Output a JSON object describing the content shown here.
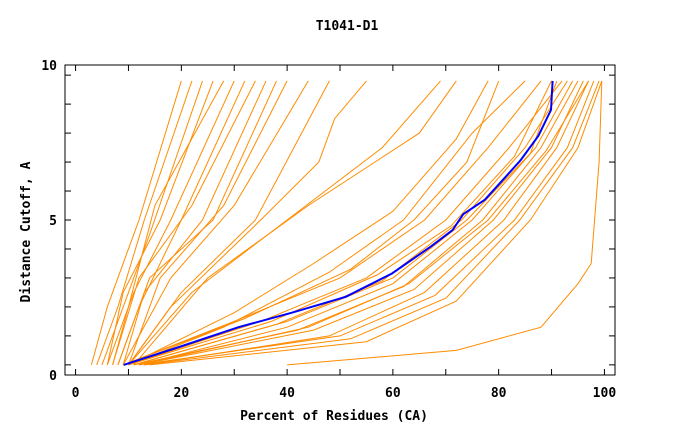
{
  "chart_data": {
    "type": "line",
    "title": "T1041-D1",
    "xlabel": "Percent of Residues (CA)",
    "ylabel": "Distance Cutoff, A",
    "xlim": [
      -2,
      102
    ],
    "ylim": [
      -0.35,
      10.35
    ],
    "xticks": [
      0,
      20,
      40,
      60,
      80,
      100
    ],
    "xminor_step": 10,
    "yticks": [
      0,
      5,
      10
    ],
    "yminor_step": 1,
    "grid": false,
    "colors": {
      "models": "#ff8c00",
      "highlight": "#0000ff"
    },
    "highlight_series": [
      [
        9.1,
        0
      ],
      [
        19.3,
        0.6
      ],
      [
        30.8,
        1.3
      ],
      [
        40.9,
        1.8
      ],
      [
        51.1,
        2.35
      ],
      [
        59.8,
        3.15
      ],
      [
        67.3,
        4.1
      ],
      [
        71.3,
        4.65
      ],
      [
        73.3,
        5.2
      ],
      [
        77.4,
        5.7
      ],
      [
        84.1,
        7.05
      ],
      [
        87.5,
        7.9
      ],
      [
        89.9,
        8.8
      ],
      [
        90.2,
        9.8
      ]
    ],
    "series": [
      [
        [
          3,
          0
        ],
        [
          6,
          2
        ],
        [
          12,
          5
        ],
        [
          20,
          9.8
        ]
      ],
      [
        [
          4,
          0
        ],
        [
          8,
          2
        ],
        [
          13,
          5
        ],
        [
          22,
          9.8
        ]
      ],
      [
        [
          5,
          0
        ],
        [
          9,
          2
        ],
        [
          14,
          4.5
        ],
        [
          24,
          9.8
        ]
      ],
      [
        [
          6,
          0
        ],
        [
          9,
          2.5
        ],
        [
          16,
          5
        ],
        [
          26,
          9.8
        ]
      ],
      [
        [
          7,
          0
        ],
        [
          10,
          2
        ],
        [
          15,
          5.5
        ],
        [
          28,
          9.8
        ]
      ],
      [
        [
          6,
          0
        ],
        [
          11,
          2.5
        ],
        [
          18,
          5
        ],
        [
          30,
          9.8
        ]
      ],
      [
        [
          8,
          0
        ],
        [
          12,
          2
        ],
        [
          20,
          5
        ],
        [
          32,
          9.8
        ]
      ],
      [
        [
          7,
          0
        ],
        [
          12,
          3
        ],
        [
          22,
          5.5
        ],
        [
          34,
          9.8
        ]
      ],
      [
        [
          9,
          0
        ],
        [
          13,
          2.5
        ],
        [
          24,
          5
        ],
        [
          36,
          9.8
        ]
      ],
      [
        [
          8,
          0
        ],
        [
          14,
          3
        ],
        [
          26,
          5
        ],
        [
          38,
          9.8
        ]
      ],
      [
        [
          10,
          0
        ],
        [
          16,
          3
        ],
        [
          28,
          5.5
        ],
        [
          40,
          9.8
        ]
      ],
      [
        [
          9,
          0
        ],
        [
          18,
          3
        ],
        [
          30,
          5.5
        ],
        [
          44,
          9.8
        ]
      ],
      [
        [
          10,
          0
        ],
        [
          20,
          2.5
        ],
        [
          34,
          5
        ],
        [
          48,
          9.8
        ]
      ],
      [
        [
          10,
          0
        ],
        [
          18,
          2
        ],
        [
          35,
          5
        ],
        [
          46,
          7
        ],
        [
          49,
          8.5
        ],
        [
          55,
          9.8
        ]
      ],
      [
        [
          10,
          0
        ],
        [
          22,
          2.5
        ],
        [
          40,
          5
        ],
        [
          58,
          7.5
        ],
        [
          69,
          9.8
        ]
      ],
      [
        [
          11,
          0
        ],
        [
          25,
          3
        ],
        [
          44,
          5.5
        ],
        [
          65,
          8
        ],
        [
          72,
          9.8
        ]
      ],
      [
        [
          9,
          0
        ],
        [
          30,
          1.5
        ],
        [
          50,
          3
        ],
        [
          66,
          5
        ],
        [
          78,
          7.5
        ],
        [
          88,
          9.8
        ]
      ],
      [
        [
          10,
          0
        ],
        [
          28,
          1.3
        ],
        [
          48,
          3.2
        ],
        [
          62,
          5
        ],
        [
          75,
          8
        ],
        [
          85,
          9.8
        ]
      ],
      [
        [
          10,
          0
        ],
        [
          35,
          1.5
        ],
        [
          55,
          3
        ],
        [
          70,
          5
        ],
        [
          82,
          7.5
        ],
        [
          92,
          9.8
        ]
      ],
      [
        [
          11,
          0
        ],
        [
          38,
          1.4
        ],
        [
          58,
          2.9
        ],
        [
          73,
          5
        ],
        [
          85,
          7.5
        ],
        [
          93,
          9.8
        ]
      ],
      [
        [
          12,
          0
        ],
        [
          40,
          1.3
        ],
        [
          60,
          2.8
        ],
        [
          75,
          5
        ],
        [
          87,
          7.5
        ],
        [
          94,
          9.8
        ]
      ],
      [
        [
          11,
          0
        ],
        [
          42,
          1.2
        ],
        [
          62,
          2.7
        ],
        [
          77,
          5
        ],
        [
          88,
          7.5
        ],
        [
          95,
          9.8
        ]
      ],
      [
        [
          12,
          0
        ],
        [
          45,
          1.2
        ],
        [
          64,
          2.6
        ],
        [
          79,
          5
        ],
        [
          90,
          7.5
        ],
        [
          96,
          9.8
        ]
      ],
      [
        [
          13,
          0
        ],
        [
          48,
          1
        ],
        [
          66,
          2.5
        ],
        [
          81,
          5
        ],
        [
          91,
          7.5
        ],
        [
          97,
          9.8
        ]
      ],
      [
        [
          12,
          0
        ],
        [
          50,
          1
        ],
        [
          68,
          2.4
        ],
        [
          83,
          5
        ],
        [
          93,
          7.5
        ],
        [
          98,
          9.8
        ]
      ],
      [
        [
          13,
          0
        ],
        [
          52,
          0.9
        ],
        [
          70,
          2.3
        ],
        [
          84,
          5
        ],
        [
          94,
          7.5
        ],
        [
          99,
          9.8
        ]
      ],
      [
        [
          14,
          0
        ],
        [
          55,
          0.8
        ],
        [
          72,
          2.2
        ],
        [
          86,
          5
        ],
        [
          95,
          7.5
        ],
        [
          99.5,
          9.8
        ]
      ],
      [
        [
          9,
          0
        ],
        [
          32,
          1.6
        ],
        [
          52,
          3.3
        ],
        [
          64,
          5
        ],
        [
          74,
          7
        ],
        [
          80,
          9.8
        ]
      ],
      [
        [
          10,
          0
        ],
        [
          30,
          1.8
        ],
        [
          45,
          3.5
        ],
        [
          60,
          5.3
        ],
        [
          72,
          7.8
        ],
        [
          78,
          9.8
        ]
      ],
      [
        [
          10,
          0
        ],
        [
          37,
          1.5
        ],
        [
          57,
          3.1
        ],
        [
          71,
          4.8
        ],
        [
          83,
          7.2
        ],
        [
          90,
          9.8
        ]
      ],
      [
        [
          11,
          0
        ],
        [
          40,
          1.5
        ],
        [
          60,
          3
        ],
        [
          74,
          5
        ],
        [
          86,
          7.3
        ],
        [
          91,
          9.8
        ]
      ],
      [
        [
          12,
          0
        ],
        [
          44,
          1.3
        ],
        [
          63,
          2.8
        ],
        [
          78,
          5
        ],
        [
          89,
          7.4
        ],
        [
          97,
          9.8
        ]
      ],
      [
        [
          40,
          0
        ],
        [
          72,
          0.5
        ],
        [
          88,
          1.3
        ],
        [
          95,
          2.8
        ],
        [
          97.5,
          3.5
        ],
        [
          99,
          7
        ],
        [
          99.5,
          9.8
        ]
      ]
    ]
  }
}
